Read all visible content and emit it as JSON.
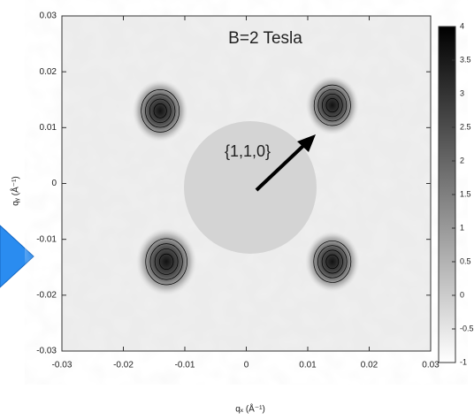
{
  "chart_data": {
    "type": "heatmap",
    "title": "B=2 Tesla",
    "annotation": "{1,1,0}",
    "x_label": "qₓ (Å⁻¹)",
    "y_label": "qᵧ (Å⁻¹)",
    "x": [
      -0.014,
      0.014,
      -0.013,
      0.014
    ],
    "y": [
      0.013,
      0.014,
      -0.014,
      -0.014
    ],
    "values": [
      3.6,
      3.4,
      4,
      3.5
    ],
    "xlim": [
      -0.03,
      0.03
    ],
    "ylim": [
      -0.03,
      0.03
    ],
    "xticks": [
      -0.03,
      -0.02,
      -0.01,
      0,
      0.01,
      0.02,
      0.03
    ],
    "yticks": [
      -0.03,
      -0.02,
      -0.01,
      0,
      0.01,
      0.02,
      0.03
    ],
    "clim": [
      -1,
      4
    ],
    "cticks": [
      -1,
      -0.5,
      0,
      0.5,
      1,
      1.5,
      2,
      2.5,
      3,
      3.5,
      4
    ]
  }
}
